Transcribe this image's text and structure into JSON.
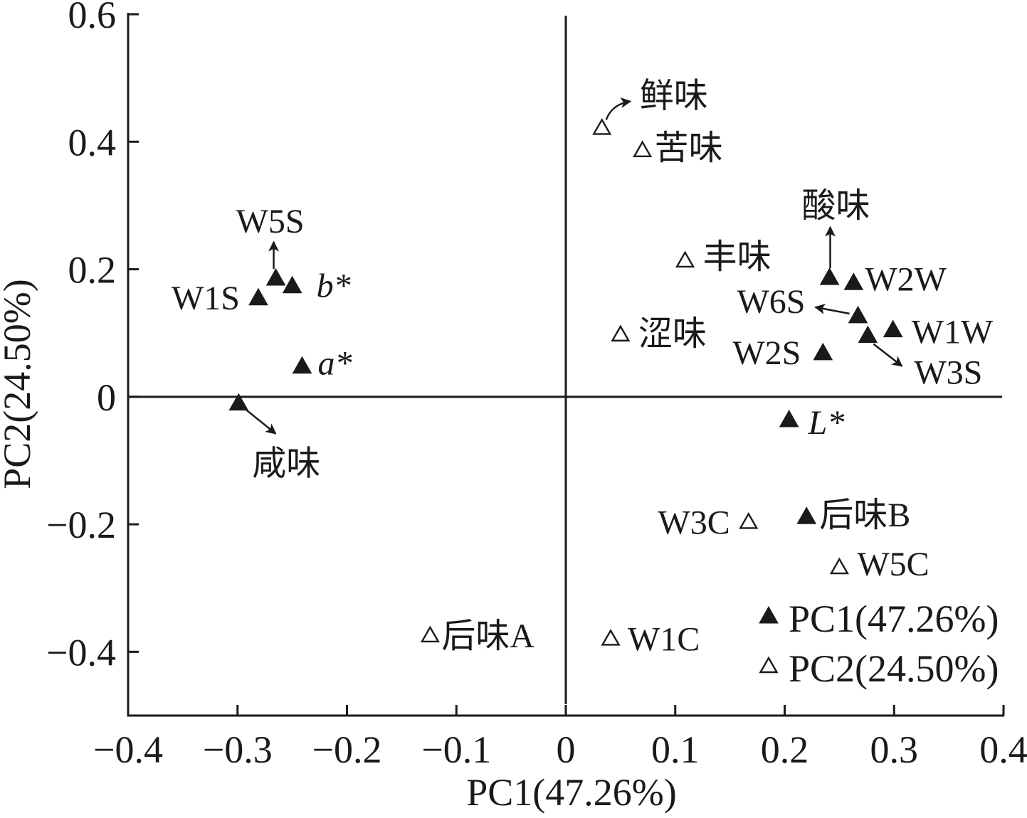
{
  "chart_data": {
    "type": "scatter",
    "xlabel": "PC1(47.26%)",
    "ylabel": "PC2(24.50%)",
    "xlim": [
      -0.4,
      0.4
    ],
    "ylim": [
      -0.5,
      0.6
    ],
    "xticks": [
      -0.4,
      -0.3,
      -0.2,
      -0.1,
      0,
      0.1,
      0.2,
      0.3,
      0.4
    ],
    "xtick_labels": [
      "−0.4",
      "−0.3",
      "−0.2",
      "−0.1",
      "0",
      "0.1",
      "0.2",
      "0.3",
      "0.4"
    ],
    "yticks": [
      0.6,
      0.4,
      0.2,
      0,
      -0.2,
      -0.4
    ],
    "ytick_labels": [
      "0.6",
      "0.4",
      "0.2",
      "0",
      "−0.2",
      "−0.4"
    ],
    "grid": false,
    "zero_lines": true,
    "legend": "bottom-right",
    "series": [
      {
        "name": "PC1(47.26%)",
        "marker": "filled-triangle",
        "color": "#1a1a1a",
        "points": [
          {
            "label": "W5S",
            "x": -0.265,
            "y": 0.185
          },
          {
            "label": "b*",
            "x": -0.25,
            "y": 0.173
          },
          {
            "label": "W1S",
            "x": -0.281,
            "y": 0.154
          },
          {
            "label": "a*",
            "x": -0.241,
            "y": 0.047
          },
          {
            "label": "咸味",
            "x": -0.299,
            "y": -0.011
          },
          {
            "label": "酸味",
            "x": 0.241,
            "y": 0.186
          },
          {
            "label": "W2W",
            "x": 0.263,
            "y": 0.178
          },
          {
            "label": "W6S",
            "x": 0.267,
            "y": 0.126
          },
          {
            "label": "W1W",
            "x": 0.299,
            "y": 0.104
          },
          {
            "label": "W3S",
            "x": 0.276,
            "y": 0.095
          },
          {
            "label": "W2S",
            "x": 0.235,
            "y": 0.068
          },
          {
            "label": "L*",
            "x": 0.204,
            "y": -0.037
          },
          {
            "label": "后味B",
            "x": 0.22,
            "y": -0.189
          }
        ]
      },
      {
        "name": "PC2(24.50%)",
        "marker": "open-triangle",
        "color": "#1a1a1a",
        "points": [
          {
            "label": "鲜味",
            "x": 0.033,
            "y": 0.421
          },
          {
            "label": "苦味",
            "x": 0.07,
            "y": 0.386
          },
          {
            "label": "丰味",
            "x": 0.109,
            "y": 0.213
          },
          {
            "label": "涩味",
            "x": 0.05,
            "y": 0.097
          },
          {
            "label": "W3C",
            "x": 0.167,
            "y": -0.197
          },
          {
            "label": "W5C",
            "x": 0.25,
            "y": -0.268
          },
          {
            "label": "后味A",
            "x": -0.124,
            "y": -0.375
          },
          {
            "label": "W1C",
            "x": 0.041,
            "y": -0.38
          }
        ]
      }
    ]
  }
}
